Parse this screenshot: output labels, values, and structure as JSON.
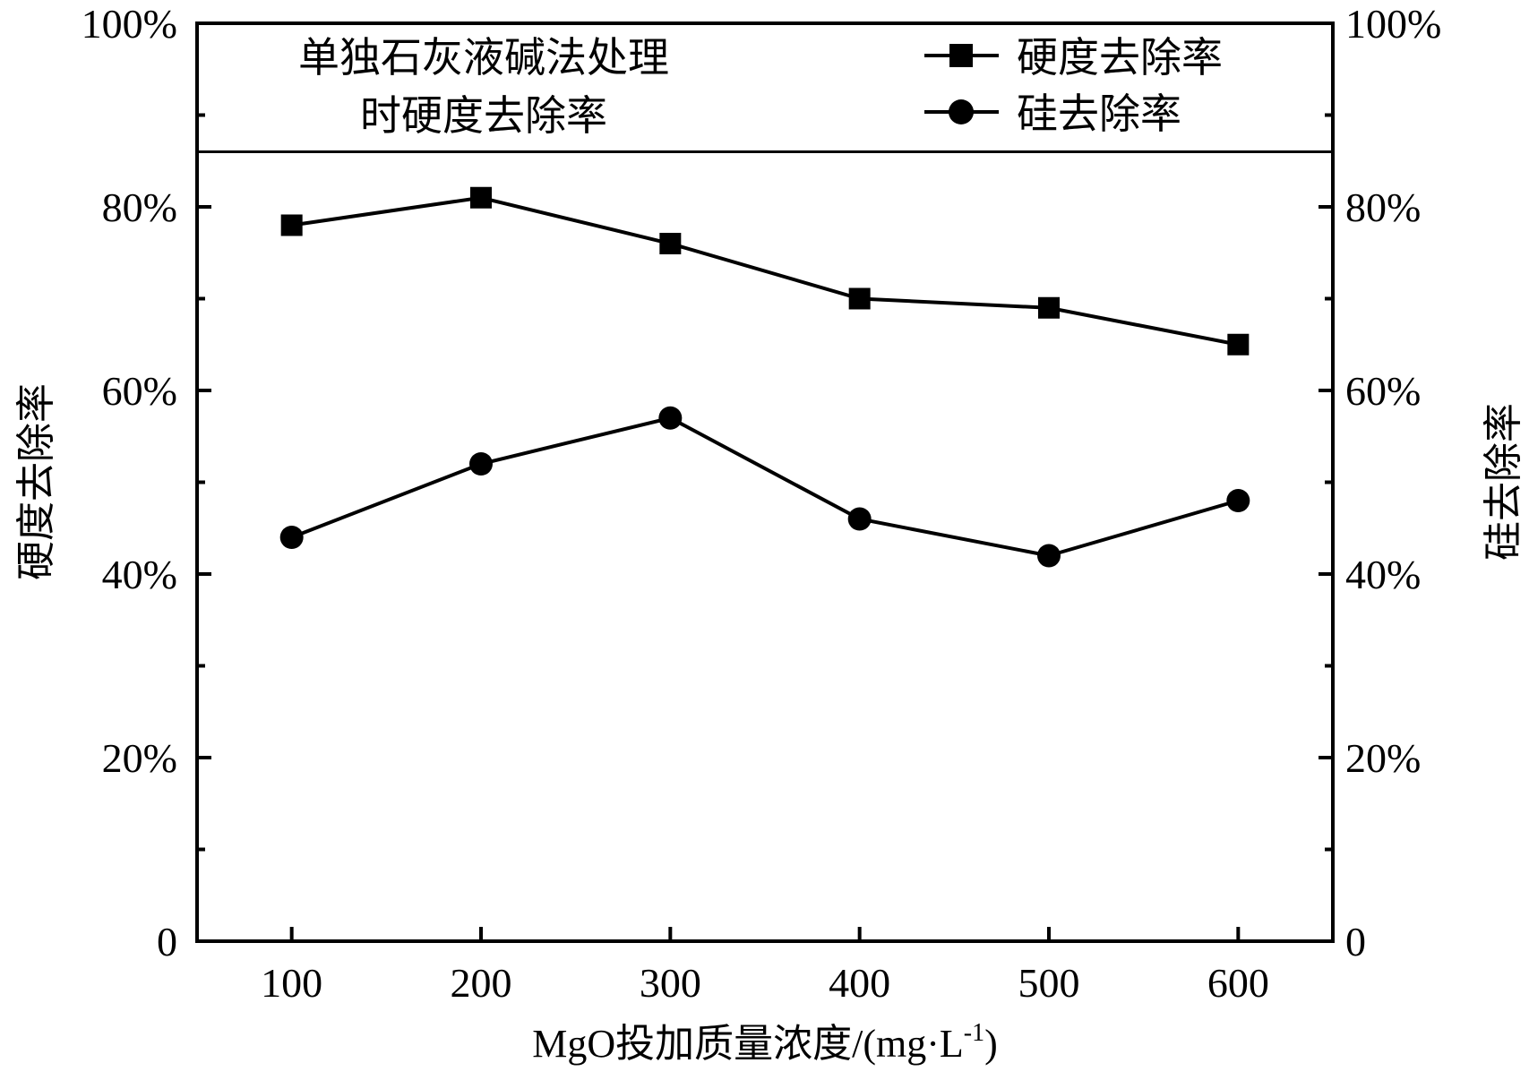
{
  "chart_data": {
    "type": "line",
    "x": [
      100,
      200,
      300,
      400,
      500,
      600
    ],
    "xlabel": {
      "prefix": "MgO",
      "cjk": "投加质量浓度",
      "unit_pre": "/(mg·L",
      "sup": "-1",
      "unit_post": ")"
    },
    "ylabel_left": "硬度去除率",
    "ylabel_right": "硅去除率",
    "ylim": [
      0,
      100
    ],
    "y_ticks": [
      0,
      20,
      40,
      60,
      80,
      100
    ],
    "y_tick_labels": [
      "0",
      "20%",
      "40%",
      "60%",
      "80%",
      "100%"
    ],
    "x_tick_labels": [
      "100",
      "200",
      "300",
      "400",
      "500",
      "600"
    ],
    "series": [
      {
        "name": "硬度去除率",
        "marker": "square",
        "values": [
          78,
          81,
          76,
          70,
          69,
          65
        ]
      },
      {
        "name": "硅去除率",
        "marker": "circle",
        "values": [
          44,
          52,
          57,
          46,
          42,
          48
        ]
      }
    ],
    "reference_line": {
      "value": 86,
      "label_line1": "单独石灰液碱法处理",
      "label_line2": "时硬度去除率"
    },
    "legend_position": "top-right",
    "grid": false
  }
}
